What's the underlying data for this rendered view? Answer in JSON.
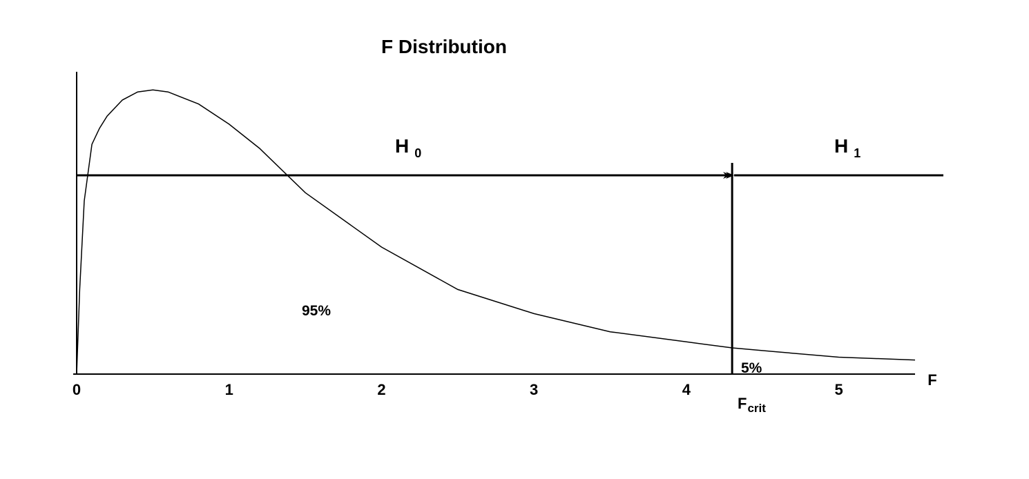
{
  "chart_data": {
    "type": "line",
    "title": "F Distribution",
    "xlabel": "F",
    "xlim": [
      0,
      5.5
    ],
    "ylim": [
      0,
      0.75
    ],
    "grid": false,
    "x_ticks": [
      "0",
      "1",
      "2",
      "3",
      "4",
      "5"
    ],
    "series": [
      {
        "x": [
          0,
          0.02,
          0.05,
          0.1,
          0.15,
          0.2,
          0.3,
          0.4,
          0.5,
          0.6,
          0.8,
          1.0,
          1.2,
          1.5,
          2.0,
          2.5,
          3.0,
          3.5,
          4.0,
          4.3,
          4.6,
          5.0,
          5.5
        ],
        "y": [
          0,
          0.21,
          0.43,
          0.57,
          0.61,
          0.64,
          0.68,
          0.7,
          0.705,
          0.7,
          0.67,
          0.62,
          0.56,
          0.45,
          0.315,
          0.21,
          0.15,
          0.105,
          0.08,
          0.065,
          0.055,
          0.042,
          0.035
        ]
      }
    ],
    "critical_value": {
      "x": 4.3,
      "label": "F",
      "label_sub": "crit"
    },
    "regions": {
      "h0": {
        "label": "H",
        "sub": "0"
      },
      "h1": {
        "label": "H",
        "sub": "1"
      }
    },
    "annotations": {
      "accept_area": "95%",
      "reject_area": "5%"
    }
  }
}
